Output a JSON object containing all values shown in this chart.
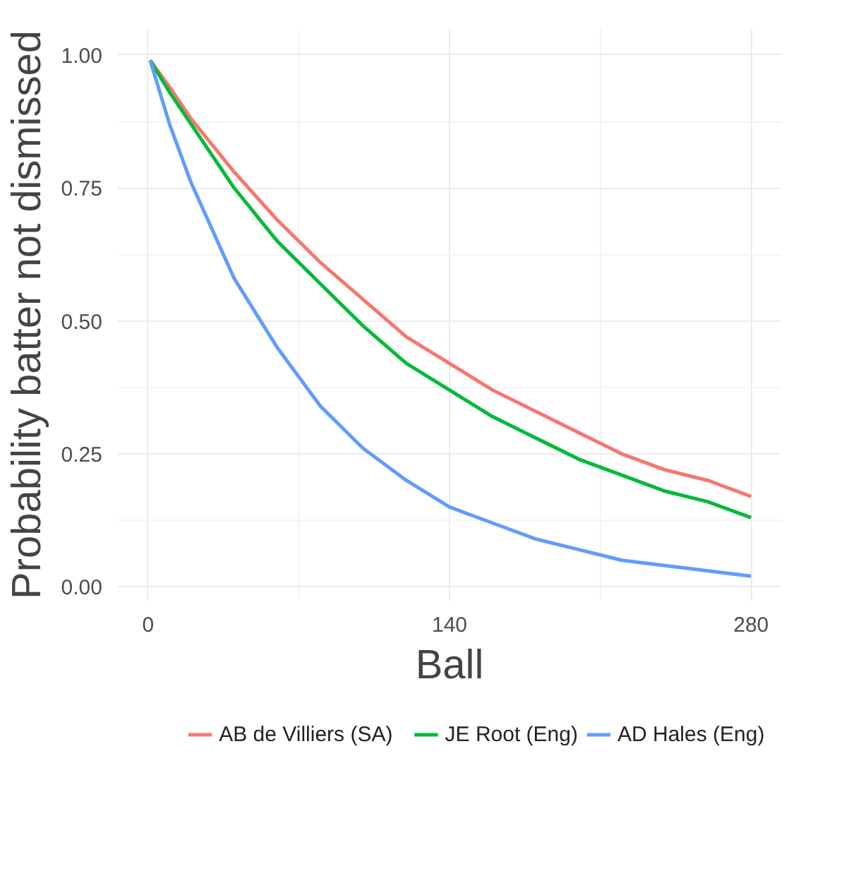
{
  "chart_data": {
    "type": "line",
    "xlabel": "Ball",
    "ylabel": "Probability batter not dismissed",
    "x": [
      1,
      10,
      20,
      30,
      40,
      60,
      80,
      100,
      120,
      140,
      160,
      180,
      200,
      220,
      240,
      260,
      280
    ],
    "series": [
      {
        "name": "AB de Villiers (SA)",
        "color": "#f8766d",
        "values": [
          0.99,
          0.94,
          0.88,
          0.83,
          0.78,
          0.69,
          0.61,
          0.54,
          0.47,
          0.42,
          0.37,
          0.33,
          0.29,
          0.25,
          0.22,
          0.2,
          0.17
        ]
      },
      {
        "name": "JE Root (Eng)",
        "color": "#00ba38",
        "values": [
          0.99,
          0.93,
          0.87,
          0.81,
          0.75,
          0.65,
          0.57,
          0.49,
          0.42,
          0.37,
          0.32,
          0.28,
          0.24,
          0.21,
          0.18,
          0.16,
          0.13
        ]
      },
      {
        "name": "AD Hales (Eng)",
        "color": "#619cff",
        "values": [
          0.99,
          0.87,
          0.76,
          0.67,
          0.58,
          0.45,
          0.34,
          0.26,
          0.2,
          0.15,
          0.12,
          0.09,
          0.07,
          0.05,
          0.04,
          0.03,
          0.02
        ]
      }
    ],
    "xlim": [
      -14,
      294
    ],
    "xticks": [
      0,
      140,
      280
    ],
    "ylim": [
      -0.026,
      1.049
    ],
    "yticks": [
      {
        "value": 0,
        "label": "0.00"
      },
      {
        "value": 0.25,
        "label": "0.25"
      },
      {
        "value": 0.5,
        "label": "0.50"
      },
      {
        "value": 0.75,
        "label": "0.75"
      },
      {
        "value": 1,
        "label": "1.00"
      }
    ],
    "grid": true,
    "legend": "bottom",
    "marker": "none",
    "line_style": "solid"
  }
}
